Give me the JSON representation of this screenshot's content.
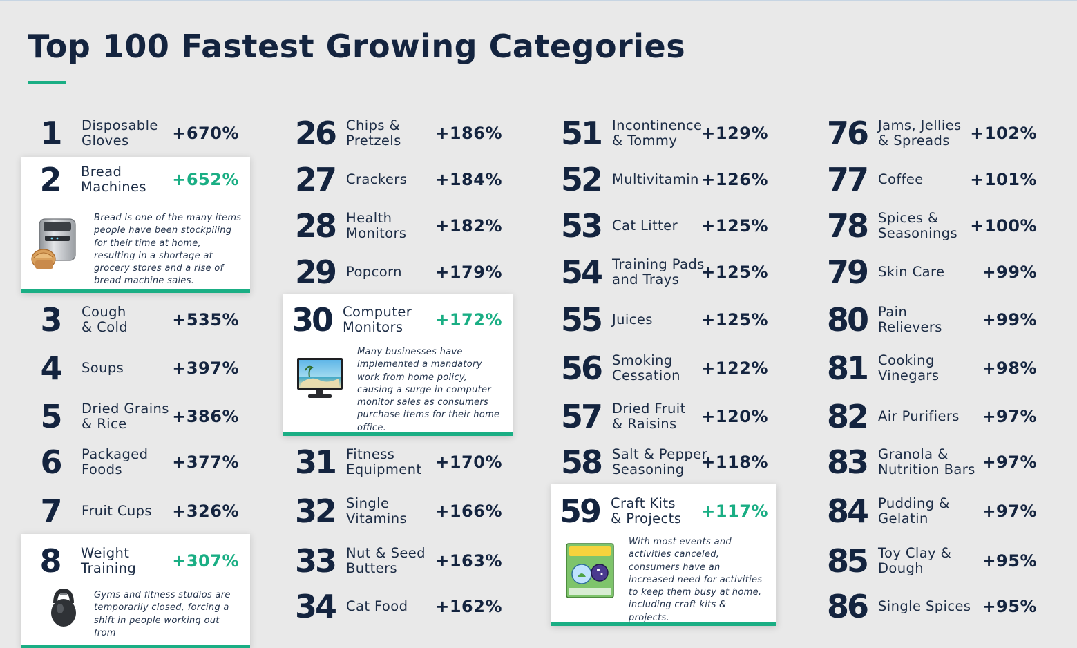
{
  "title": "Top 100 Fastest Growing Categories",
  "colors": {
    "navy": "#14243f",
    "accent": "#1aae84",
    "background": "#e9e9e9"
  },
  "categories": [
    {
      "rank": "1",
      "name": "Disposable\nGloves",
      "growth": "+670%"
    },
    {
      "rank": "2",
      "name": "Bread\nMachines",
      "growth": "+652%",
      "note": "Bread is one of the many items people have been stockpiling for their time at home, resulting in a shortage at grocery stores and a rise of bread machine sales.",
      "image": "bread-machine"
    },
    {
      "rank": "3",
      "name": "Cough\n& Cold",
      "growth": "+535%"
    },
    {
      "rank": "4",
      "name": "Soups",
      "growth": "+397%"
    },
    {
      "rank": "5",
      "name": "Dried Grains\n& Rice",
      "growth": "+386%"
    },
    {
      "rank": "6",
      "name": "Packaged\nFoods",
      "growth": "+377%"
    },
    {
      "rank": "7",
      "name": "Fruit Cups",
      "growth": "+326%"
    },
    {
      "rank": "8",
      "name": "Weight\nTraining",
      "growth": "+307%",
      "note": "Gyms and fitness studios are temporarily closed, forcing a shift in people working out from",
      "image": "kettlebell"
    },
    {
      "rank": "26",
      "name": "Chips &\nPretzels",
      "growth": "+186%"
    },
    {
      "rank": "27",
      "name": "Crackers",
      "growth": "+184%"
    },
    {
      "rank": "28",
      "name": "Health\nMonitors",
      "growth": "+182%"
    },
    {
      "rank": "29",
      "name": "Popcorn",
      "growth": "+179%"
    },
    {
      "rank": "30",
      "name": "Computer\nMonitors",
      "growth": "+172%",
      "note": "Many businesses have implemented a mandatory work from home policy, causing a surge in computer monitor sales as consumers purchase items for their home office.",
      "image": "computer-monitor"
    },
    {
      "rank": "31",
      "name": "Fitness\nEquipment",
      "growth": "+170%"
    },
    {
      "rank": "32",
      "name": "Single\nVitamins",
      "growth": "+166%"
    },
    {
      "rank": "33",
      "name": "Nut & Seed\nButters",
      "growth": "+163%"
    },
    {
      "rank": "34",
      "name": "Cat Food",
      "growth": "+162%"
    },
    {
      "rank": "51",
      "name": "Incontinence\n& Tommy",
      "growth": "+129%"
    },
    {
      "rank": "52",
      "name": "Multivitamin",
      "growth": "+126%"
    },
    {
      "rank": "53",
      "name": "Cat Litter",
      "growth": "+125%"
    },
    {
      "rank": "54",
      "name": "Training Pads\nand Trays",
      "growth": "+125%"
    },
    {
      "rank": "55",
      "name": "Juices",
      "growth": "+125%"
    },
    {
      "rank": "56",
      "name": "Smoking\nCessation",
      "growth": "+122%"
    },
    {
      "rank": "57",
      "name": "Dried Fruit\n& Raisins",
      "growth": "+120%"
    },
    {
      "rank": "58",
      "name": "Salt & Pepper\nSeasoning",
      "growth": "+118%"
    },
    {
      "rank": "59",
      "name": "Craft Kits\n& Projects",
      "growth": "+117%",
      "note": "With most events and activities canceled, consumers have an increased need for activities to keep them busy at home, including craft kits & projects.",
      "image": "craft-kit-box"
    },
    {
      "rank": "76",
      "name": "Jams, Jellies\n& Spreads",
      "growth": "+102%"
    },
    {
      "rank": "77",
      "name": "Coffee",
      "growth": "+101%"
    },
    {
      "rank": "78",
      "name": "Spices &\nSeasonings",
      "growth": "+100%"
    },
    {
      "rank": "79",
      "name": "Skin Care",
      "growth": "+99%"
    },
    {
      "rank": "80",
      "name": "Pain\nRelievers",
      "growth": "+99%"
    },
    {
      "rank": "81",
      "name": "Cooking\nVinegars",
      "growth": "+98%"
    },
    {
      "rank": "82",
      "name": "Air Purifiers",
      "growth": "+97%"
    },
    {
      "rank": "83",
      "name": "Granola &\nNutrition Bars",
      "growth": "+97%"
    },
    {
      "rank": "84",
      "name": "Pudding &\nGelatin",
      "growth": "+97%"
    },
    {
      "rank": "85",
      "name": "Toy Clay &\nDough",
      "growth": "+95%"
    },
    {
      "rank": "86",
      "name": "Single Spices",
      "growth": "+95%"
    }
  ]
}
